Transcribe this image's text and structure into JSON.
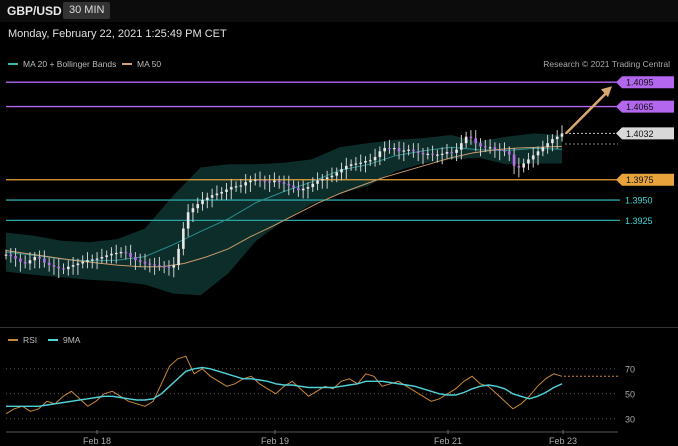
{
  "header": {
    "symbol": "GBP/USD",
    "interval": "30 MIN",
    "datetime": "Monday, February 22, 2021 1:25:49 PM CET"
  },
  "legend": {
    "bollinger": {
      "label": "MA 20 + Bollinger Bands",
      "color": "#3fb6b0"
    },
    "ma50": {
      "label": "MA 50",
      "color": "#d4a373"
    },
    "copyright": "Research © 2021 Trading Central"
  },
  "rsi_legend": {
    "rsi": {
      "label": "RSI",
      "color": "#c8883a"
    },
    "ma9": {
      "label": "9MA",
      "color": "#4fd2d8"
    }
  },
  "chart_data": [
    {
      "type": "candlestick",
      "title": "GBP/USD",
      "x_ticks": [
        "Feb 18",
        "Feb 19",
        "Feb 21",
        "Feb 23"
      ],
      "ylim": [
        1.38,
        1.411
      ],
      "current_price": 1.4032,
      "levels": [
        {
          "value": 1.4095,
          "label": "1.4095",
          "kind": "resistance",
          "color": "#b366ee"
        },
        {
          "value": 1.4065,
          "label": "1.4065",
          "kind": "resistance",
          "color": "#b366ee"
        },
        {
          "value": 1.3975,
          "label": "1.3975",
          "kind": "pivot",
          "color": "#e8a33c"
        },
        {
          "value": 1.395,
          "label": "1.3950",
          "kind": "support",
          "color": "#2aa3a3"
        },
        {
          "value": 1.3925,
          "label": "1.3925",
          "kind": "support",
          "color": "#2aa3a3"
        }
      ],
      "forecast_arrow": {
        "from": 1.4032,
        "to": 1.4095,
        "color": "#d9a870"
      },
      "close_series": [
        1.3883,
        1.3881,
        1.3878,
        1.3874,
        1.3872,
        1.3876,
        1.388,
        1.3878,
        1.3873,
        1.387,
        1.3868,
        1.3866,
        1.3865,
        1.3868,
        1.387,
        1.3872,
        1.3874,
        1.3876,
        1.3877,
        1.3878,
        1.388,
        1.3882,
        1.3884,
        1.3885,
        1.3886,
        1.3885,
        1.388,
        1.3876,
        1.3874,
        1.3872,
        1.3871,
        1.387,
        1.3869,
        1.3868,
        1.3867,
        1.387,
        1.389,
        1.3915,
        1.3935,
        1.394,
        1.3945,
        1.395,
        1.3953,
        1.3956,
        1.3958,
        1.396,
        1.3963,
        1.3966,
        1.3967,
        1.3968,
        1.3972,
        1.3974,
        1.3975,
        1.3974,
        1.3973,
        1.3972,
        1.3974,
        1.3972,
        1.397,
        1.3968,
        1.3965,
        1.3962,
        1.3964,
        1.3966,
        1.397,
        1.3974,
        1.3976,
        1.3978,
        1.398,
        1.3984,
        1.3988,
        1.3992,
        1.3994,
        1.3995,
        1.3996,
        1.3998,
        1.3999,
        1.4003,
        1.401,
        1.4014,
        1.4013,
        1.4014,
        1.401,
        1.4011,
        1.4012,
        1.401,
        1.4008,
        1.4006,
        1.4007,
        1.4006,
        1.4006,
        1.4007,
        1.4009,
        1.4008,
        1.4012,
        1.402,
        1.4028,
        1.4026,
        1.402,
        1.4016,
        1.4015,
        1.4015,
        1.4012,
        1.4011,
        1.401,
        1.4006,
        1.3992,
        1.399,
        1.3995,
        1.4,
        1.4005,
        1.401,
        1.4015,
        1.402,
        1.4025,
        1.4028,
        1.4032
      ],
      "bollinger": {
        "upper": [
          1.391,
          1.3906,
          1.39,
          1.3898,
          1.3902,
          1.3915,
          1.3955,
          1.399,
          1.3994,
          1.3994,
          1.3996,
          1.4,
          1.4015,
          1.402,
          1.4024,
          1.4026,
          1.403,
          1.4022,
          1.4028,
          1.4032,
          1.403
        ],
        "lower": [
          1.3862,
          1.3858,
          1.3855,
          1.3852,
          1.385,
          1.3846,
          1.3835,
          1.3833,
          1.386,
          1.39,
          1.3925,
          1.3945,
          1.3958,
          1.3967,
          1.3985,
          1.3995,
          1.4,
          1.4002,
          1.3994,
          1.3995,
          1.3995
        ]
      },
      "ma50": [
        1.3888,
        1.3884,
        1.388,
        1.3876,
        1.3873,
        1.387,
        1.3868,
        1.3868,
        1.3872,
        1.388,
        1.389,
        1.3905,
        1.3918,
        1.3932,
        1.3946,
        1.3958,
        1.3968,
        1.3978,
        1.3986,
        1.3994,
        1.4002,
        1.4008,
        1.4012,
        1.4014,
        1.4015,
        1.4016
      ]
    },
    {
      "type": "line",
      "title": "RSI",
      "ylim": [
        25,
        85
      ],
      "y_ticks": [
        70,
        50,
        30
      ],
      "series": [
        {
          "name": "RSI",
          "values": [
            34,
            38,
            40,
            36,
            38,
            44,
            42,
            48,
            52,
            46,
            40,
            44,
            50,
            52,
            48,
            44,
            42,
            40,
            44,
            58,
            72,
            78,
            80,
            66,
            70,
            64,
            60,
            56,
            58,
            62,
            64,
            58,
            54,
            50,
            56,
            60,
            54,
            48,
            52,
            56,
            54,
            60,
            62,
            58,
            66,
            64,
            56,
            58,
            60,
            56,
            52,
            48,
            44,
            46,
            50,
            54,
            60,
            64,
            58,
            56,
            50,
            44,
            38,
            42,
            48,
            56,
            62,
            66,
            64
          ]
        },
        {
          "name": "9MA",
          "values": [
            40,
            40,
            40,
            40,
            40,
            41,
            42,
            43,
            44,
            45,
            46,
            47,
            48,
            48,
            47,
            46,
            45,
            45,
            46,
            50,
            56,
            62,
            68,
            70,
            71,
            70,
            68,
            66,
            64,
            62,
            62,
            61,
            60,
            58,
            57,
            57,
            56,
            55,
            55,
            55,
            55,
            56,
            57,
            58,
            60,
            60,
            60,
            59,
            58,
            57,
            56,
            54,
            52,
            50,
            49,
            49,
            51,
            54,
            56,
            57,
            56,
            54,
            50,
            48,
            46,
            48,
            51,
            55,
            58
          ]
        }
      ]
    }
  ]
}
